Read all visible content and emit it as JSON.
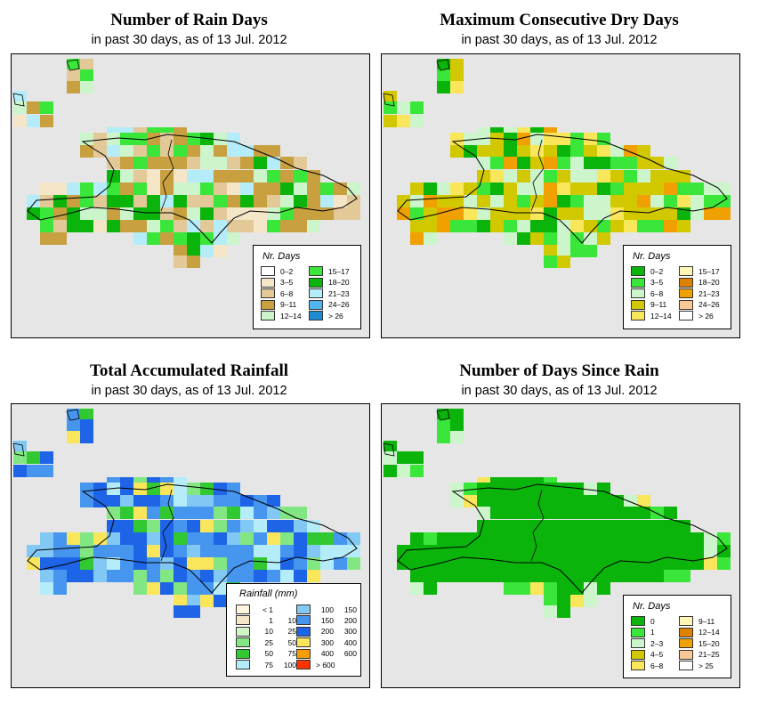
{
  "panels": [
    {
      "id": "rain-days",
      "title": "Number of Rain Days",
      "subtitle": "in past 30 days, as of  13 Jul. 2012",
      "legend": {
        "title": "Nr. Days",
        "items": [
          {
            "label": "0–2",
            "color": "#ffffff"
          },
          {
            "label": "3–5",
            "color": "#f5e6c8"
          },
          {
            "label": "6–8",
            "color": "#e3c898"
          },
          {
            "label": "9–11",
            "color": "#c8a040"
          },
          {
            "label": "12–14",
            "color": "#ccf5cc"
          },
          {
            "label": "15–17",
            "color": "#3ae63a"
          },
          {
            "label": "18–20",
            "color": "#0ab40a"
          },
          {
            "label": "21–23",
            "color": "#b4ecfa"
          },
          {
            "label": "24–26",
            "color": "#50b4f0"
          },
          {
            "label": "> 26",
            "color": "#1e8cd2"
          }
        ]
      }
    },
    {
      "id": "max-dry-days",
      "title": "Maximum Consecutive Dry Days",
      "subtitle": "in past 30 days, as of  13 Jul. 2012",
      "legend": {
        "title": "Nr. Days",
        "items": [
          {
            "label": "0–2",
            "color": "#0ab40a"
          },
          {
            "label": "3–5",
            "color": "#3ae63a"
          },
          {
            "label": "6–8",
            "color": "#ccf5cc"
          },
          {
            "label": "9–11",
            "color": "#d2c800"
          },
          {
            "label": "12–14",
            "color": "#fae65a"
          },
          {
            "label": "15–17",
            "color": "#fff5b4"
          },
          {
            "label": "18–20",
            "color": "#dc8200"
          },
          {
            "label": "21–23",
            "color": "#f0a000"
          },
          {
            "label": "24–26",
            "color": "#fac896"
          },
          {
            "label": "> 26",
            "color": "#ffffff"
          }
        ]
      }
    },
    {
      "id": "total-rainfall",
      "title": "Total Accumulated Rainfall",
      "subtitle": "in past 30 days, as of  13 Jul. 2012",
      "legend": {
        "title": "Rainfall (mm)",
        "items": [
          {
            "a": "< 1",
            "b": "",
            "color": "#fff5dc"
          },
          {
            "a": "1",
            "b": "10",
            "color": "#f5e6c8"
          },
          {
            "a": "10",
            "b": "25",
            "color": "#d2f5c8"
          },
          {
            "a": "25",
            "b": "50",
            "color": "#82e682"
          },
          {
            "a": "50",
            "b": "75",
            "color": "#32c832"
          },
          {
            "a": "75",
            "b": "100",
            "color": "#b4ecfa"
          },
          {
            "a": "100",
            "b": "150",
            "color": "#82c8f5"
          },
          {
            "a": "150",
            "b": "200",
            "color": "#4696f0"
          },
          {
            "a": "200",
            "b": "300",
            "color": "#1e64e6"
          },
          {
            "a": "300",
            "b": "400",
            "color": "#fae65a"
          },
          {
            "a": "400",
            "b": "600",
            "color": "#f5a000"
          },
          {
            "a": "> 600",
            "b": "",
            "color": "#ff3200"
          }
        ]
      }
    },
    {
      "id": "days-since-rain",
      "title": "Number of Days Since Rain",
      "subtitle": "in past 30 days, as of  13 Jul. 2012",
      "legend": {
        "title": "Nr. Days",
        "items": [
          {
            "label": "0",
            "color": "#0ab40a"
          },
          {
            "label": "1",
            "color": "#3ae63a"
          },
          {
            "label": "2–3",
            "color": "#ccf5cc"
          },
          {
            "label": "4–5",
            "color": "#d2c800"
          },
          {
            "label": "6–8",
            "color": "#fae65a"
          },
          {
            "label": "9–11",
            "color": "#fff5b4"
          },
          {
            "label": "12–14",
            "color": "#dc8200"
          },
          {
            "label": "15–20",
            "color": "#f0a000"
          },
          {
            "label": "21–25",
            "color": "#fac896"
          },
          {
            "label": "> 25",
            "color": "#ffffff"
          }
        ]
      }
    }
  ]
}
